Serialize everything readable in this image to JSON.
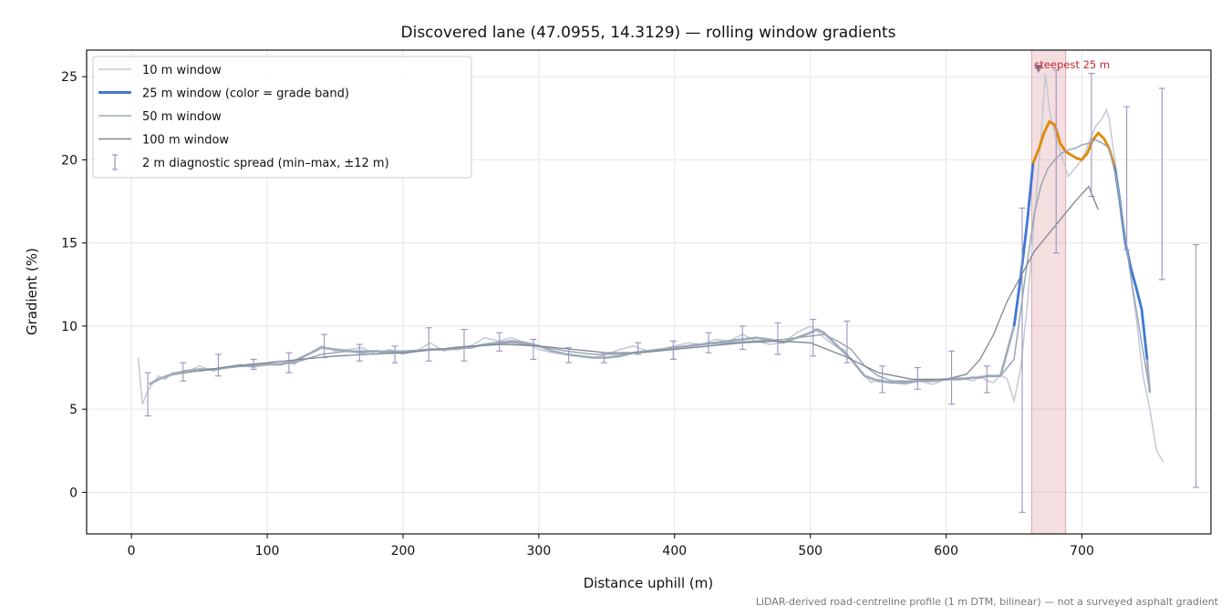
{
  "chart_data": {
    "type": "line",
    "title": "Discovered lane (47.0955, 14.3129) — rolling window gradients",
    "xlabel": "Distance uphill (m)",
    "ylabel": "Gradient (%)",
    "xlim": [
      -33,
      795
    ],
    "ylim": [
      -2.5,
      26.6
    ],
    "xticks": [
      0,
      100,
      200,
      300,
      400,
      500,
      600,
      700
    ],
    "yticks": [
      0,
      5,
      10,
      15,
      20,
      25
    ],
    "grid": true,
    "legend_position": "top-left",
    "footnote": "LiDAR-derived road-centreline profile (1 m DTM, bilinear) — not a surveyed asphalt gradient",
    "highlight": {
      "label": "steepest 25 m",
      "x_range": [
        663,
        688
      ],
      "marker": [
        668,
        25.5
      ],
      "color": "#d9888f"
    },
    "colors": {
      "w10": "#c3c8d6",
      "w25_base": "#9eacbc",
      "w25_steep": "#3f78d4",
      "w25_max": "#e08a00",
      "w50": "#9ba6b4",
      "w100": "#7d8592",
      "spread": "#9a92be",
      "annotation": "#c0282f"
    },
    "legend": [
      {
        "label": "10 m window",
        "key": "w10"
      },
      {
        "label": "25 m window (color = grade band)",
        "key": "w25"
      },
      {
        "label": "50 m window",
        "key": "w50"
      },
      {
        "label": "100 m window",
        "key": "w100"
      },
      {
        "label": "2 m diagnostic spread (min–max, ±12 m)",
        "key": "spread"
      }
    ],
    "series": [
      {
        "name": "10 m window",
        "key": "w10",
        "x": [
          5,
          8,
          12,
          16,
          20,
          25,
          30,
          40,
          50,
          60,
          70,
          80,
          90,
          100,
          110,
          120,
          130,
          140,
          150,
          160,
          170,
          180,
          190,
          200,
          210,
          220,
          230,
          240,
          250,
          260,
          270,
          280,
          290,
          300,
          310,
          320,
          330,
          340,
          350,
          360,
          370,
          380,
          390,
          400,
          410,
          420,
          430,
          440,
          450,
          460,
          470,
          480,
          490,
          500,
          505,
          510,
          515,
          520,
          525,
          530,
          540,
          545,
          550,
          560,
          570,
          580,
          590,
          600,
          610,
          620,
          625,
          630,
          635,
          640,
          645,
          650,
          655,
          660,
          665,
          670,
          673,
          676,
          680,
          690,
          700,
          705,
          710,
          715,
          718,
          720,
          725,
          730,
          740,
          745,
          750,
          755,
          760
        ],
        "y": [
          8.1,
          5.3,
          6.1,
          6.6,
          7.0,
          6.8,
          7.2,
          7.2,
          7.6,
          7.3,
          7.5,
          7.7,
          7.5,
          7.8,
          7.9,
          7.7,
          8.3,
          8.8,
          8.5,
          8.6,
          8.7,
          8.3,
          8.6,
          8.3,
          8.5,
          9.0,
          8.5,
          8.7,
          8.8,
          9.3,
          9.1,
          9.3,
          9.0,
          8.6,
          8.4,
          8.3,
          8.2,
          8.1,
          8.3,
          8.6,
          8.8,
          8.5,
          8.6,
          8.8,
          9.0,
          8.9,
          9.2,
          9.1,
          9.5,
          9.1,
          8.9,
          9.0,
          9.6,
          10.0,
          9.7,
          9.3,
          9.0,
          8.7,
          8.6,
          8.0,
          7.0,
          6.6,
          6.8,
          6.6,
          6.5,
          6.7,
          6.5,
          6.8,
          6.9,
          6.7,
          7.0,
          6.7,
          6.6,
          7.1,
          6.8,
          5.5,
          7.5,
          11.5,
          16.5,
          21.5,
          25.2,
          23.0,
          21.5,
          19.0,
          20.0,
          21.0,
          22.0,
          22.5,
          23.0,
          22.5,
          19.5,
          16.5,
          10.5,
          7.0,
          5.0,
          2.5,
          1.8
        ]
      },
      {
        "name": "25 m window",
        "key": "w25",
        "x": [
          13,
          20,
          30,
          40,
          50,
          60,
          70,
          80,
          90,
          100,
          110,
          120,
          130,
          140,
          150,
          160,
          170,
          180,
          190,
          200,
          210,
          220,
          230,
          240,
          250,
          260,
          270,
          280,
          290,
          300,
          310,
          320,
          330,
          340,
          350,
          360,
          370,
          380,
          390,
          400,
          410,
          420,
          430,
          440,
          450,
          460,
          470,
          480,
          490,
          500,
          505,
          510,
          515,
          520,
          530,
          540,
          550,
          560,
          570,
          580,
          590,
          600,
          610,
          620,
          625,
          630,
          640,
          650,
          655,
          660,
          664,
          668,
          672,
          676,
          680,
          684,
          688,
          692,
          696,
          700,
          704,
          708,
          712,
          716,
          720,
          724,
          728,
          732,
          736,
          740,
          744,
          748,
          750
        ],
        "y": [
          6.5,
          6.8,
          7.1,
          7.3,
          7.4,
          7.4,
          7.5,
          7.6,
          7.6,
          7.7,
          7.7,
          7.9,
          8.3,
          8.7,
          8.6,
          8.5,
          8.4,
          8.5,
          8.4,
          8.4,
          8.5,
          8.6,
          8.6,
          8.7,
          8.7,
          8.9,
          9.0,
          9.1,
          9.0,
          8.8,
          8.5,
          8.3,
          8.2,
          8.1,
          8.1,
          8.2,
          8.4,
          8.5,
          8.6,
          8.7,
          8.8,
          8.9,
          9.0,
          9.1,
          9.2,
          9.3,
          9.2,
          9.0,
          9.3,
          9.6,
          9.8,
          9.6,
          9.2,
          8.8,
          8.0,
          7.0,
          6.7,
          6.6,
          6.6,
          6.7,
          6.7,
          6.8,
          6.8,
          6.9,
          6.9,
          7.0,
          7.0,
          10.0,
          13.0,
          16.5,
          19.8,
          20.6,
          21.6,
          22.3,
          22.1,
          21.0,
          20.5,
          20.3,
          20.1,
          20.0,
          20.4,
          21.2,
          21.6,
          21.3,
          20.7,
          19.6,
          17.5,
          15.0,
          13.5,
          12.3,
          11.0,
          8.0,
          6.0
        ]
      },
      {
        "name": "50 m window",
        "key": "w50",
        "x": [
          25,
          40,
          60,
          80,
          100,
          120,
          140,
          160,
          180,
          200,
          220,
          240,
          260,
          280,
          300,
          320,
          340,
          360,
          380,
          400,
          420,
          440,
          460,
          480,
          500,
          510,
          520,
          530,
          540,
          550,
          560,
          580,
          600,
          620,
          640,
          650,
          655,
          660,
          665,
          670,
          675,
          680,
          685,
          690,
          695,
          700,
          705,
          710,
          715,
          720,
          725,
          730,
          735,
          740,
          745,
          750
        ],
        "y": [
          7.0,
          7.2,
          7.4,
          7.6,
          7.7,
          7.8,
          8.3,
          8.5,
          8.5,
          8.5,
          8.6,
          8.6,
          8.9,
          9.0,
          8.8,
          8.5,
          8.3,
          8.3,
          8.5,
          8.7,
          8.9,
          9.0,
          9.1,
          9.2,
          9.4,
          9.5,
          9.1,
          8.6,
          7.6,
          7.0,
          6.7,
          6.7,
          6.8,
          6.9,
          7.0,
          8.0,
          11.0,
          14.0,
          16.8,
          18.5,
          19.5,
          20.0,
          20.4,
          20.6,
          20.7,
          20.9,
          21.0,
          21.2,
          21.0,
          20.7,
          19.0,
          16.5,
          13.5,
          11.0,
          8.5,
          6.0
        ]
      },
      {
        "name": "100 m window",
        "key": "w100",
        "x": [
          50,
          75,
          100,
          125,
          150,
          175,
          200,
          225,
          250,
          275,
          300,
          325,
          350,
          375,
          400,
          425,
          450,
          475,
          500,
          525,
          550,
          575,
          600,
          615,
          625,
          635,
          645,
          655,
          665,
          675,
          685,
          695,
          705,
          712
        ],
        "y": [
          7.3,
          7.6,
          7.8,
          8.0,
          8.2,
          8.3,
          8.4,
          8.6,
          8.8,
          8.9,
          8.8,
          8.6,
          8.4,
          8.4,
          8.6,
          8.8,
          9.0,
          9.1,
          9.0,
          8.2,
          7.2,
          6.8,
          6.8,
          7.1,
          8.0,
          9.5,
          11.5,
          13.0,
          14.5,
          15.5,
          16.5,
          17.5,
          18.4,
          17.0
        ]
      }
    ],
    "spread": [
      {
        "x": 12,
        "lo": 4.6,
        "hi": 7.2
      },
      {
        "x": 38,
        "lo": 6.7,
        "hi": 7.8
      },
      {
        "x": 64,
        "lo": 7.0,
        "hi": 8.3
      },
      {
        "x": 90,
        "lo": 7.4,
        "hi": 8.0
      },
      {
        "x": 116,
        "lo": 7.2,
        "hi": 8.4
      },
      {
        "x": 142,
        "lo": 8.1,
        "hi": 9.5
      },
      {
        "x": 168,
        "lo": 7.9,
        "hi": 8.9
      },
      {
        "x": 194,
        "lo": 7.8,
        "hi": 8.8
      },
      {
        "x": 219,
        "lo": 7.9,
        "hi": 9.9
      },
      {
        "x": 245,
        "lo": 7.9,
        "hi": 9.8
      },
      {
        "x": 271,
        "lo": 8.5,
        "hi": 9.6
      },
      {
        "x": 296,
        "lo": 8.0,
        "hi": 9.2
      },
      {
        "x": 322,
        "lo": 7.8,
        "hi": 8.7
      },
      {
        "x": 348,
        "lo": 7.8,
        "hi": 8.4
      },
      {
        "x": 373,
        "lo": 8.3,
        "hi": 9.0
      },
      {
        "x": 399,
        "lo": 8.0,
        "hi": 9.1
      },
      {
        "x": 425,
        "lo": 8.4,
        "hi": 9.6
      },
      {
        "x": 450,
        "lo": 8.6,
        "hi": 10.0
      },
      {
        "x": 476,
        "lo": 8.3,
        "hi": 10.2
      },
      {
        "x": 502,
        "lo": 8.2,
        "hi": 10.4
      },
      {
        "x": 527,
        "lo": 7.8,
        "hi": 10.3
      },
      {
        "x": 553,
        "lo": 6.0,
        "hi": 7.6
      },
      {
        "x": 579,
        "lo": 6.2,
        "hi": 7.5
      },
      {
        "x": 604,
        "lo": 5.3,
        "hi": 8.5
      },
      {
        "x": 630,
        "lo": 6.0,
        "hi": 7.6
      },
      {
        "x": 656,
        "lo": -1.2,
        "hi": 17.1
      },
      {
        "x": 681,
        "lo": 14.4,
        "hi": 25.4
      },
      {
        "x": 707,
        "lo": 17.8,
        "hi": 25.2
      },
      {
        "x": 733,
        "lo": 14.6,
        "hi": 23.2
      },
      {
        "x": 759,
        "lo": 12.8,
        "hi": 24.3
      },
      {
        "x": 784,
        "lo": 0.3,
        "hi": 14.9
      }
    ]
  }
}
